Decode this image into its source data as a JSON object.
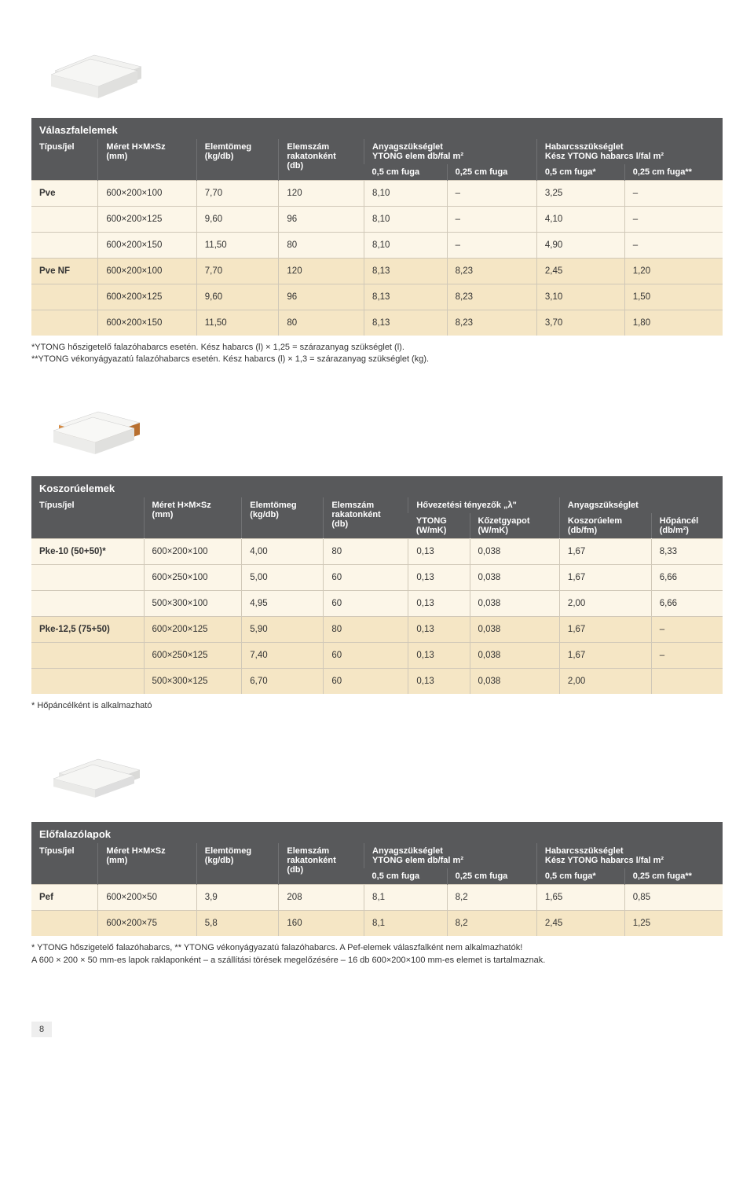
{
  "page_number": "8",
  "colors": {
    "header_bg": "#58595b",
    "header_text": "#ffffff",
    "band_light": "#fcf6e8",
    "band_dark": "#f5e6c5",
    "border": "#d0c8b8"
  },
  "table1": {
    "title": "Válaszfalelemek",
    "headers": {
      "c0": "Típus/jel",
      "c1": "Méret H×M×Sz\n(mm)",
      "c2": "Elemtömeg\n(kg/db)",
      "c3": "Elemszám\nrakatonként\n(db)",
      "c4_top": "Anyagszükséglet\nYTONG elem db/fal m²",
      "c4a": "0,5 cm fuga",
      "c4b": "0,25 cm fuga",
      "c5_top": "Habarcsszükséglet\nKész YTONG habarcs l/fal m²",
      "c5a": "0,5 cm fuga*",
      "c5b": "0,25 cm fuga**"
    },
    "rows": [
      {
        "band": "light",
        "c0": "Pve",
        "c1": "600×200×100",
        "c2": "7,70",
        "c3": "120",
        "c4": "8,10",
        "c5": "–",
        "c6": "3,25",
        "c7": "–"
      },
      {
        "band": "light",
        "c0": "",
        "c1": "600×200×125",
        "c2": "9,60",
        "c3": "96",
        "c4": "8,10",
        "c5": "–",
        "c6": "4,10",
        "c7": "–"
      },
      {
        "band": "light",
        "c0": "",
        "c1": "600×200×150",
        "c2": "11,50",
        "c3": "80",
        "c4": "8,10",
        "c5": "–",
        "c6": "4,90",
        "c7": "–"
      },
      {
        "band": "dark",
        "c0": "Pve NF",
        "c1": "600×200×100",
        "c2": "7,70",
        "c3": "120",
        "c4": "8,13",
        "c5": "8,23",
        "c6": "2,45",
        "c7": "1,20"
      },
      {
        "band": "dark",
        "c0": "",
        "c1": "600×200×125",
        "c2": "9,60",
        "c3": "96",
        "c4": "8,13",
        "c5": "8,23",
        "c6": "3,10",
        "c7": "1,50"
      },
      {
        "band": "dark",
        "c0": "",
        "c1": "600×200×150",
        "c2": "11,50",
        "c3": "80",
        "c4": "8,13",
        "c5": "8,23",
        "c6": "3,70",
        "c7": "1,80"
      }
    ],
    "note_line1": "*YTONG hőszigetelő falazóhabarcs esetén. Kész habarcs (l) × 1,25 = szárazanyag szükséglet (l).",
    "note_line2": "**YTONG vékonyágyazatú falazóhabarcs esetén. Kész habarcs (l) × 1,3 = szárazanyag szükséglet (kg)."
  },
  "table2": {
    "title": "Koszorúelemek",
    "headers": {
      "c0": "Típus/jel",
      "c1": "Méret H×M×Sz\n(mm)",
      "c2": "Elemtömeg\n(kg/db)",
      "c3": "Elemszám\nrakatonként\n(db)",
      "c4_top": "Hővezetési tényezők „λ\"",
      "c4a": "YTONG\n(W/mK)",
      "c4b": "Kőzetgyapot\n(W/mK)",
      "c5_top": "Anyagszükséglet",
      "c5a": "Koszorúelem\n(db/fm)",
      "c5b": "Hőpáncél\n(db/m²)"
    },
    "rows": [
      {
        "band": "light",
        "c0": "Pke-10 (50+50)*",
        "c1": "600×200×100",
        "c2": "4,00",
        "c3": "80",
        "c4": "0,13",
        "c5": "0,038",
        "c6": "1,67",
        "c7": "8,33"
      },
      {
        "band": "light",
        "c0": "",
        "c1": "600×250×100",
        "c2": "5,00",
        "c3": "60",
        "c4": "0,13",
        "c5": "0,038",
        "c6": "1,67",
        "c7": "6,66"
      },
      {
        "band": "light",
        "c0": "",
        "c1": "500×300×100",
        "c2": "4,95",
        "c3": "60",
        "c4": "0,13",
        "c5": "0,038",
        "c6": "2,00",
        "c7": "6,66"
      },
      {
        "band": "dark",
        "c0": "Pke-12,5 (75+50)",
        "c1": "600×200×125",
        "c2": "5,90",
        "c3": "80",
        "c4": "0,13",
        "c5": "0,038",
        "c6": "1,67",
        "c7": "–"
      },
      {
        "band": "dark",
        "c0": "",
        "c1": "600×250×125",
        "c2": "7,40",
        "c3": "60",
        "c4": "0,13",
        "c5": "0,038",
        "c6": "1,67",
        "c7": "–"
      },
      {
        "band": "dark",
        "c0": "",
        "c1": "500×300×125",
        "c2": "6,70",
        "c3": "60",
        "c4": "0,13",
        "c5": "0,038",
        "c6": "2,00",
        "c7": ""
      }
    ],
    "note": "* Hőpáncélként is alkalmazható"
  },
  "table3": {
    "title": "Előfalazólapok",
    "headers": {
      "c0": "Típus/jel",
      "c1": "Méret H×M×Sz\n(mm)",
      "c2": "Elemtömeg\n(kg/db)",
      "c3": "Elemszám\nrakatonként\n(db)",
      "c4_top": "Anyagszükséglet\nYTONG elem db/fal m²",
      "c4a": "0,5 cm fuga",
      "c4b": "0,25 cm fuga",
      "c5_top": "Habarcsszükséglet\nKész YTONG habarcs l/fal m²",
      "c5a": "0,5 cm fuga*",
      "c5b": "0,25 cm fuga**"
    },
    "rows": [
      {
        "band": "light",
        "c0": "Pef",
        "c1": "600×200×50",
        "c2": "3,9",
        "c3": "208",
        "c4": "8,1",
        "c5": "8,2",
        "c6": "1,65",
        "c7": "0,85"
      },
      {
        "band": "dark",
        "c0": "",
        "c1": "600×200×75",
        "c2": "5,8",
        "c3": "160",
        "c4": "8,1",
        "c5": "8,2",
        "c6": "2,45",
        "c7": "1,25"
      }
    ],
    "note_line1": "* YTONG hőszigetelő falazóhabarcs,    ** YTONG vékonyágyazatú falazóhabarcs.  A Pef-elemek válaszfalként nem alkalmazhatók!",
    "note_line2": "A 600 × 200 × 50 mm-es lapok raklaponként – a szállítási törések megelőzésére – 16 db 600×200×100 mm-es elemet is tartalmaznak."
  }
}
